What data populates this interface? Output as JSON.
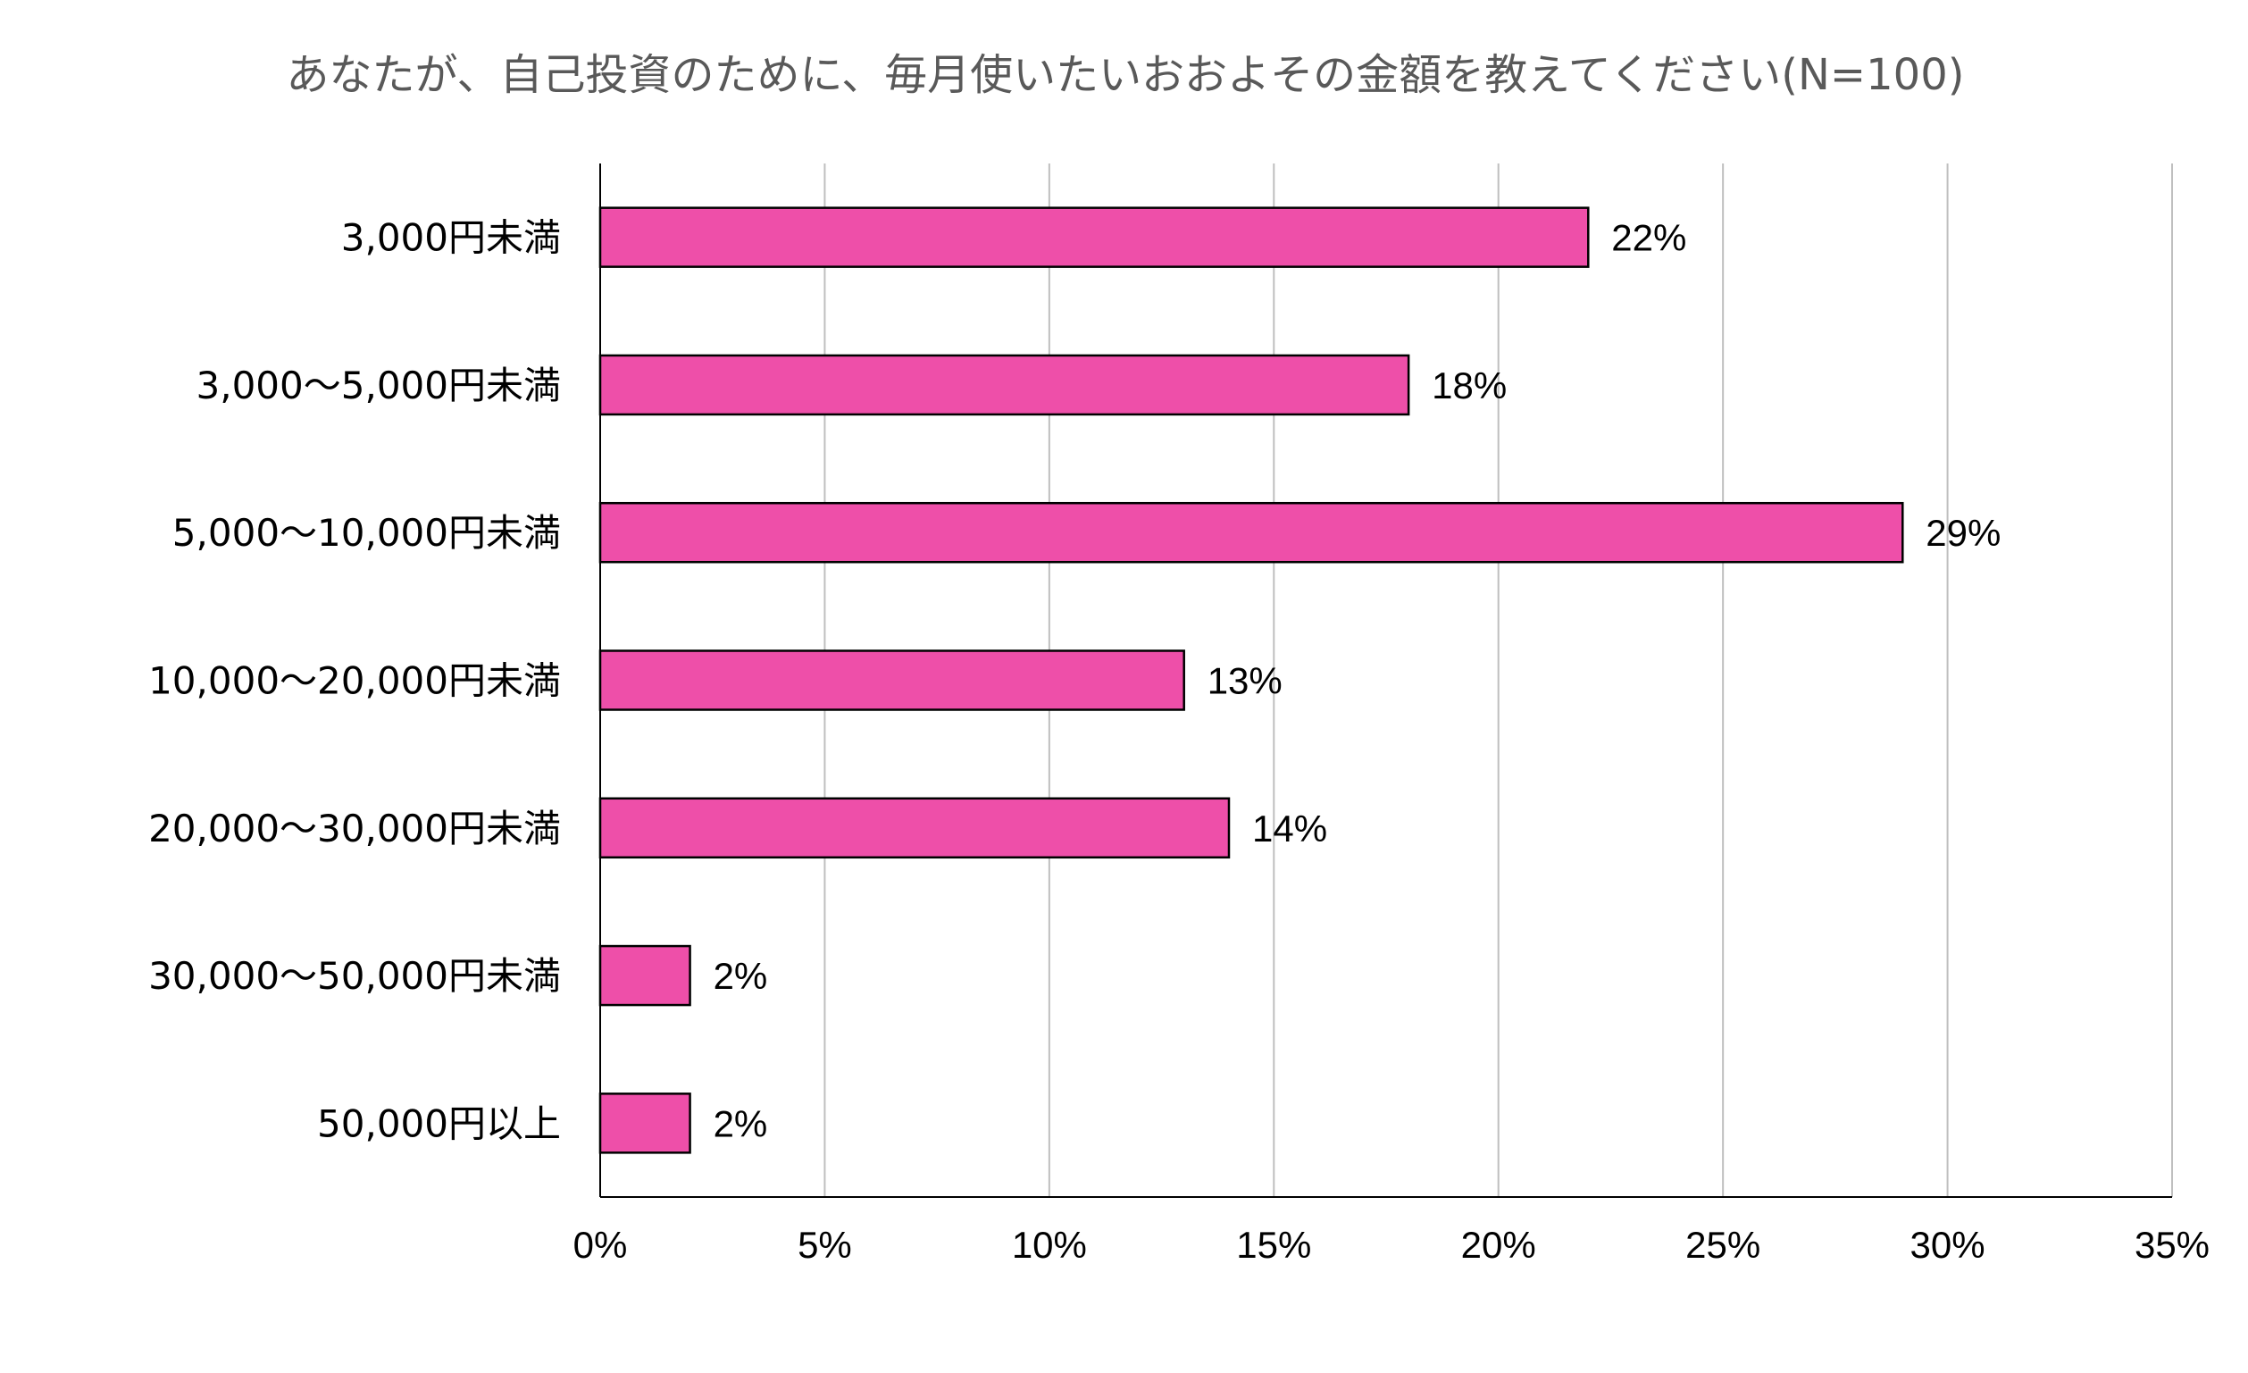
{
  "chart_data": {
    "type": "bar",
    "orientation": "horizontal",
    "title": "あなたが、自己投資のために、毎月使いたいおおよその金額を教えてください(N=100)",
    "categories": [
      "3,000円未満",
      "3,000～5,000円未満",
      "5,000～10,000円未満",
      "10,000～20,000円未満",
      "20,000～30,000円未満",
      "30,000～50,000円未満",
      "50,000円以上"
    ],
    "values": [
      22,
      18,
      29,
      13,
      14,
      2,
      2
    ],
    "data_labels": [
      "22%",
      "18%",
      "29%",
      "13%",
      "14%",
      "2%",
      "2%"
    ],
    "xlim": [
      0,
      35
    ],
    "xticks": [
      0,
      5,
      10,
      15,
      20,
      25,
      30,
      35
    ],
    "xtick_labels": [
      "0%",
      "5%",
      "10%",
      "15%",
      "20%",
      "25%",
      "30%",
      "35%"
    ],
    "xlabel": "",
    "ylabel": "",
    "grid": "vertical",
    "legend": "none",
    "colors": {
      "bar_fill": "#EE4FA9",
      "bar_stroke": "#000000",
      "grid": "#BFBFBF",
      "title": "#595959"
    }
  }
}
